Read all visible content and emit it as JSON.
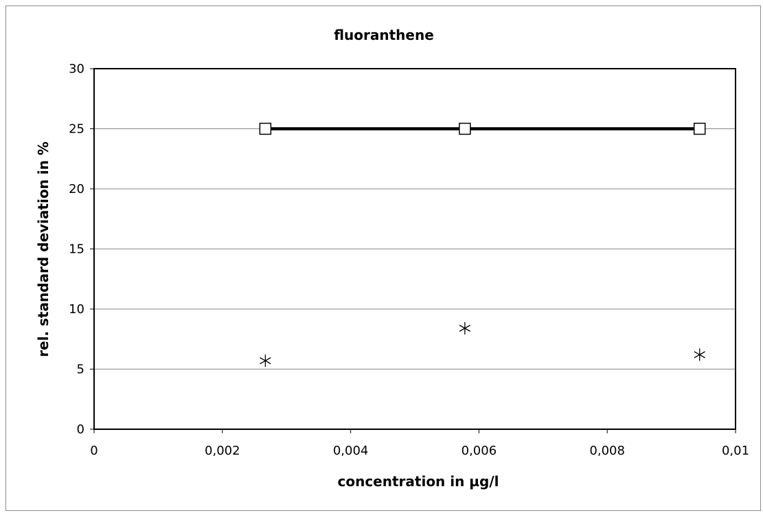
{
  "chart_data": {
    "type": "scatter",
    "title": "fluoranthene",
    "xlabel": "concentration in µg/l",
    "ylabel": "rel. standard deviation in %",
    "xlim": [
      0,
      0.01
    ],
    "ylim": [
      0,
      30
    ],
    "x_ticks": [
      0,
      0.002,
      0.004,
      0.006,
      0.008,
      0.01
    ],
    "x_tick_labels": [
      "0",
      "0,002",
      "0,004",
      "0,006",
      "0,008",
      "0,01"
    ],
    "y_ticks": [
      0,
      5,
      10,
      15,
      20,
      25,
      30
    ],
    "y_tick_labels": [
      "0",
      "5",
      "10",
      "15",
      "20",
      "25",
      "30"
    ],
    "grid": "horizontal",
    "legend": "none",
    "series": [
      {
        "marker": "square",
        "line": true,
        "color": "#000000",
        "points": [
          [
            0.00267,
            25
          ],
          [
            0.00578,
            25
          ],
          [
            0.00944,
            25
          ]
        ]
      },
      {
        "marker": "asterisk",
        "line": false,
        "color": "#000000",
        "points": [
          [
            0.00267,
            5.7
          ],
          [
            0.00578,
            8.4
          ],
          [
            0.00944,
            6.2
          ]
        ]
      }
    ]
  }
}
